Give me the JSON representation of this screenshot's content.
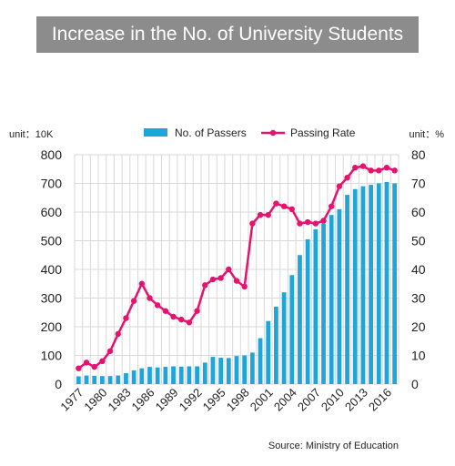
{
  "chart_data": {
    "type": "bar+line",
    "title": "Increase in the No. of University Students",
    "source": "Source: Ministry of Education",
    "y_left": {
      "unit": "unit：10K",
      "range": [
        0,
        800
      ],
      "ticks": [
        0,
        100,
        200,
        300,
        400,
        500,
        600,
        700,
        800
      ]
    },
    "y_right": {
      "unit": "unit：%",
      "range": [
        0,
        80
      ],
      "ticks": [
        0,
        10,
        20,
        30,
        40,
        50,
        60,
        70,
        80
      ]
    },
    "x_tick_labels": [
      "1977",
      "1980",
      "1983",
      "1986",
      "1989",
      "1992",
      "1995",
      "1998",
      "2001",
      "2004",
      "2007",
      "2010",
      "2013",
      "2016"
    ],
    "legend_position": "top",
    "grid": true,
    "x": [
      1977,
      1978,
      1979,
      1980,
      1981,
      1982,
      1983,
      1984,
      1985,
      1986,
      1987,
      1988,
      1989,
      1990,
      1991,
      1992,
      1993,
      1994,
      1995,
      1996,
      1997,
      1998,
      1999,
      2000,
      2001,
      2002,
      2003,
      2004,
      2005,
      2006,
      2007,
      2008,
      2009,
      2010,
      2011,
      2012,
      2013,
      2014,
      2015,
      2016,
      2017
    ],
    "series": [
      {
        "name": "No. of Passers",
        "kind": "bar",
        "axis": "left",
        "color": "#1ea6db",
        "values": [
          27,
          30,
          29,
          28,
          28,
          30,
          38,
          48,
          55,
          60,
          58,
          60,
          62,
          61,
          62,
          62,
          75,
          95,
          92,
          91,
          98,
          100,
          110,
          160,
          220,
          270,
          320,
          380,
          450,
          505,
          540,
          560,
          590,
          610,
          660,
          680,
          690,
          695,
          700,
          705,
          700
        ]
      },
      {
        "name": "Passing Rate",
        "kind": "line",
        "axis": "right",
        "color": "#e6126e",
        "values": [
          5.5,
          7.5,
          6,
          8,
          11.5,
          17.5,
          23,
          29,
          35,
          30,
          27.5,
          25.5,
          23.5,
          22.5,
          21.5,
          25.5,
          34.5,
          36.5,
          37,
          40,
          36,
          34,
          56,
          59,
          59,
          63,
          62,
          61,
          56,
          56.5,
          56,
          57,
          62,
          69,
          72,
          75.5,
          76,
          74.5,
          74.5,
          75.5,
          74.5
        ]
      }
    ]
  }
}
